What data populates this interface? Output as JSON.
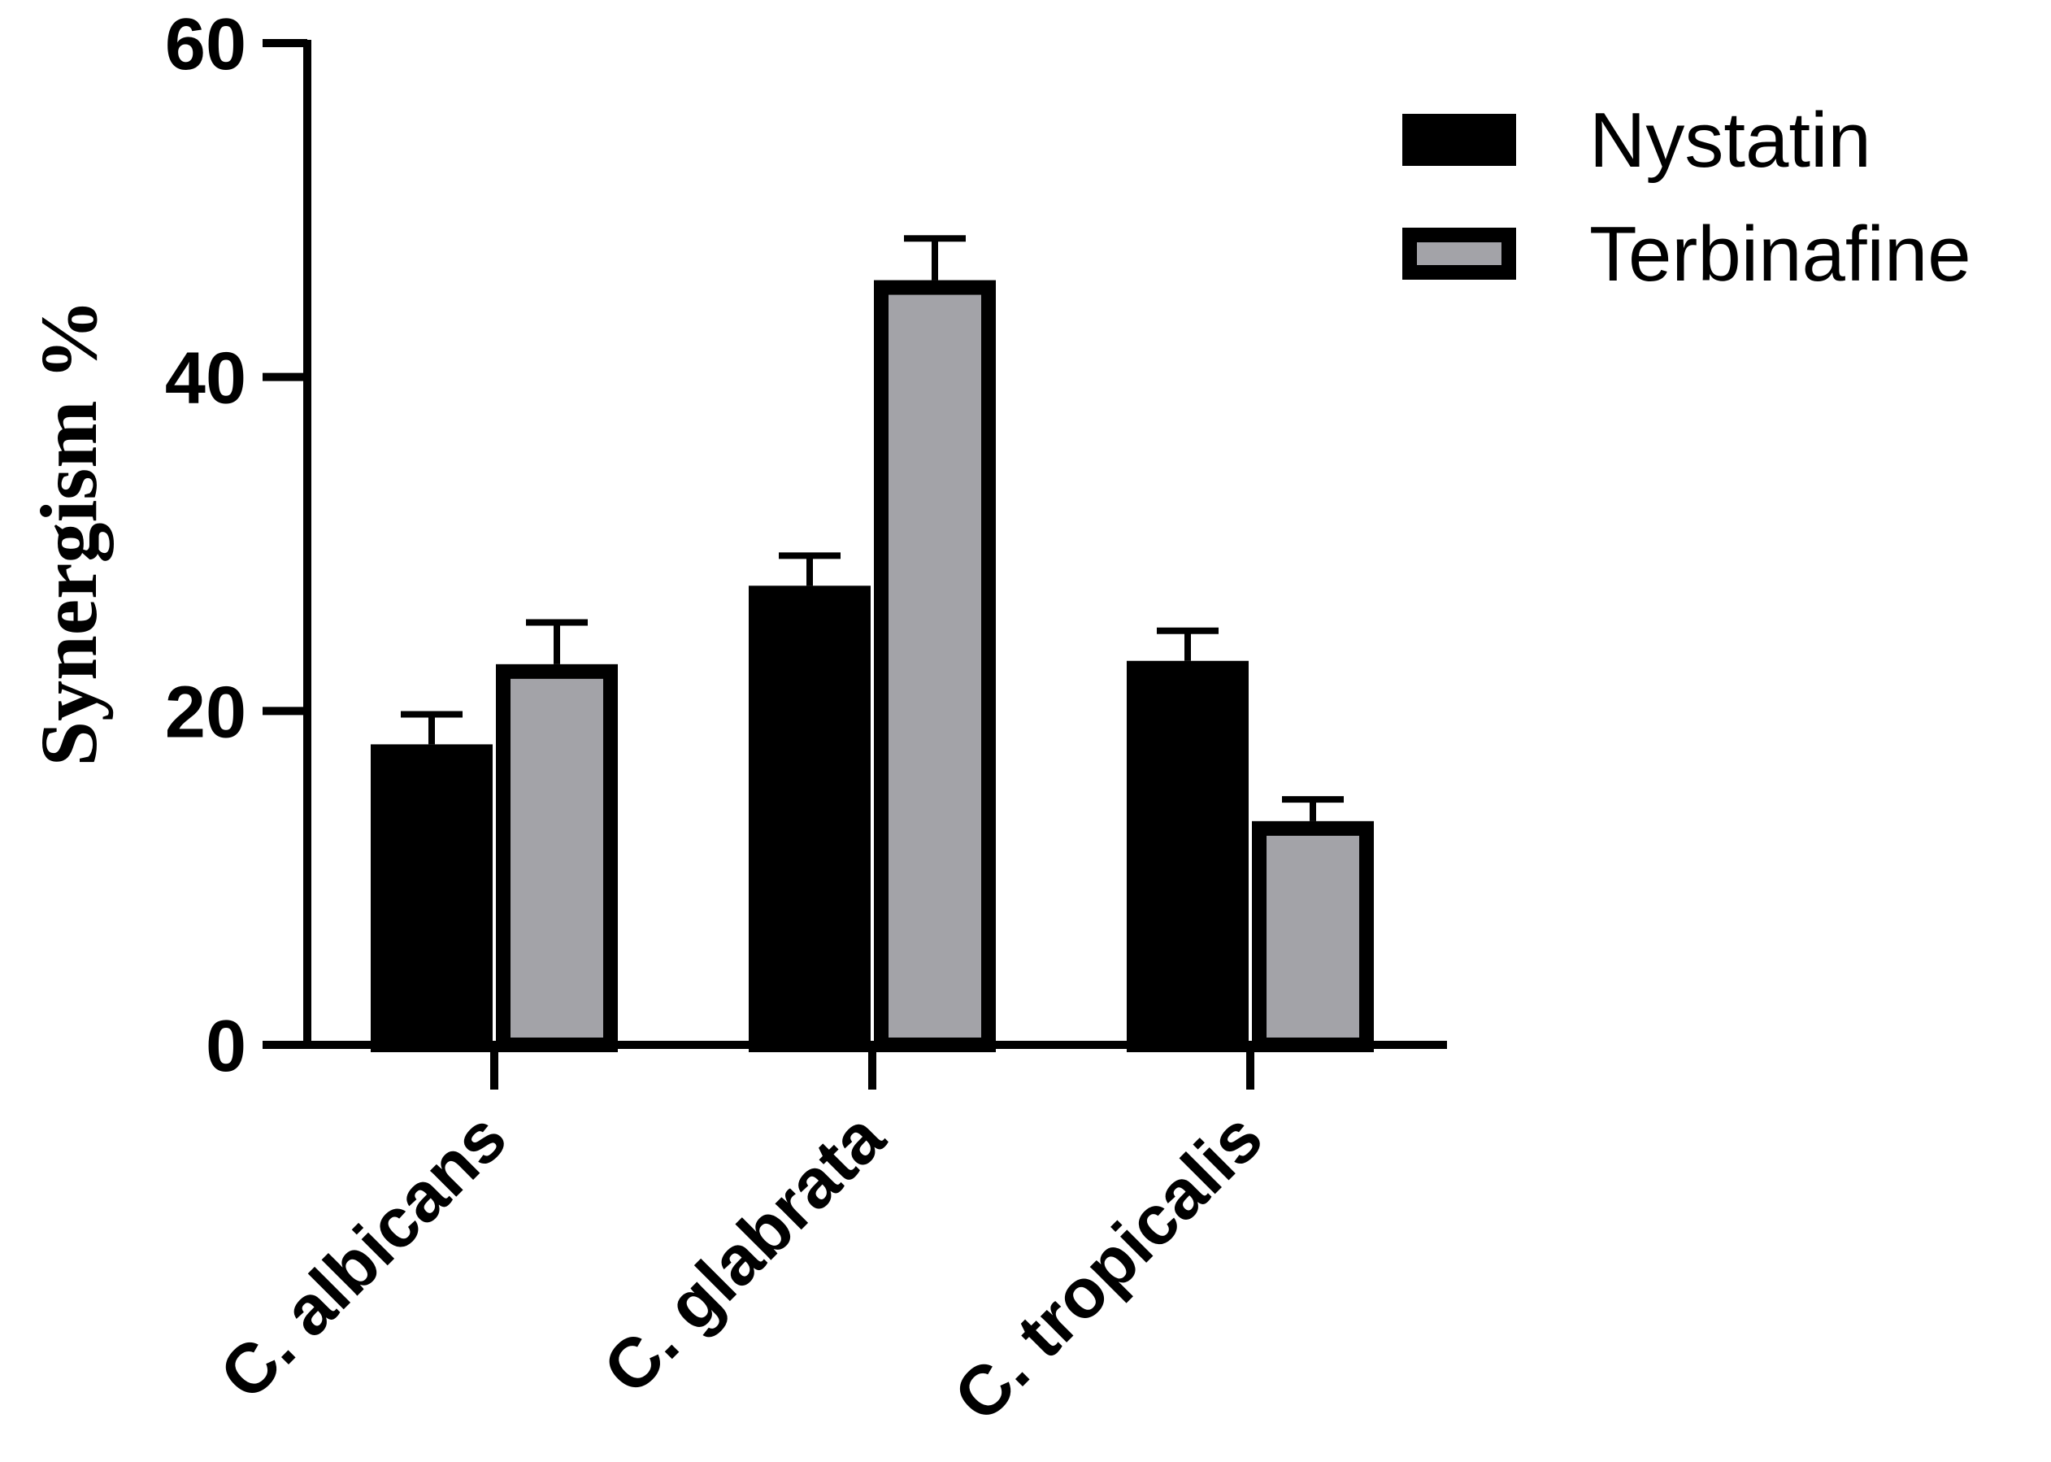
{
  "chart_data": {
    "type": "bar",
    "title": "",
    "xlabel": "",
    "ylabel": "Synergism   %",
    "ylim": [
      0,
      60
    ],
    "yticks": [
      0,
      20,
      40,
      60
    ],
    "categories": [
      "C. albicans",
      "C. glabrata",
      "C. tropicalis"
    ],
    "series": [
      {
        "name": "Nystatin",
        "values": [
          18,
          27.5,
          23
        ],
        "errors": [
          1.8,
          1.8,
          1.8
        ],
        "color": "#000000"
      },
      {
        "name": "Terbinafine",
        "values": [
          22.8,
          45.8,
          13.4
        ],
        "errors": [
          2.5,
          2.5,
          1.3
        ],
        "color": "#a3a3a8"
      }
    ],
    "grid": false,
    "legend_position": "top-right"
  }
}
